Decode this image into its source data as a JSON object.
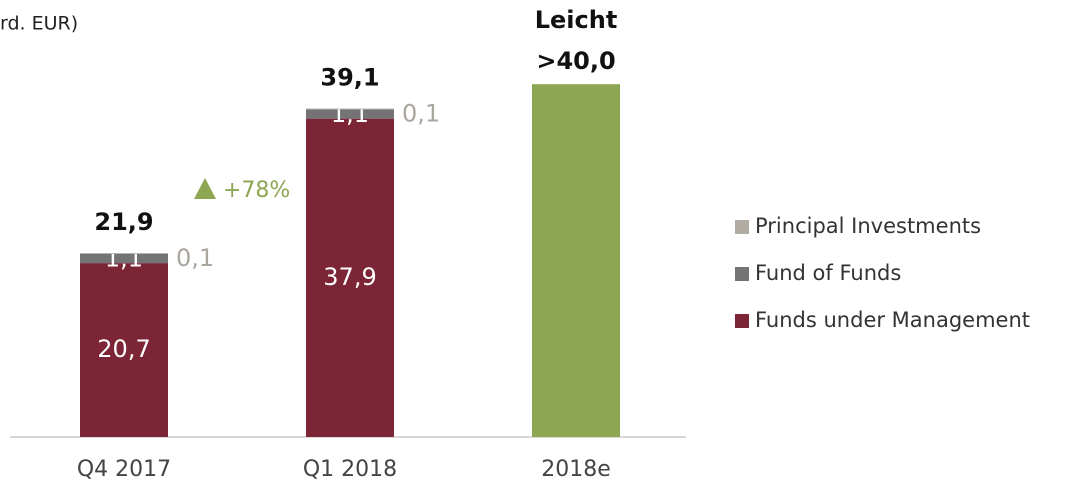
{
  "chart_data": {
    "type": "stacked_bar",
    "title": "rd. EUR)",
    "categories": [
      "Q4 2017",
      "Q1 2018",
      "2018e"
    ],
    "series": [
      {
        "name": "Funds under Management",
        "color": "#7b2537",
        "values": [
          20.7,
          37.9,
          null
        ],
        "value_labels": [
          "20,7",
          "37,9",
          null
        ]
      },
      {
        "name": "Fund of Funds",
        "color": "#747474",
        "values": [
          1.1,
          1.1,
          null
        ],
        "value_labels": [
          "1,1",
          "1,1",
          null
        ]
      },
      {
        "name": "Principal Investments",
        "color": "#b1aca3",
        "values": [
          0.1,
          0.1,
          null
        ],
        "value_labels": [
          "0,1",
          "0,1",
          null
        ]
      }
    ],
    "totals": [
      21.9,
      39.1,
      null
    ],
    "total_labels": [
      "21,9",
      "39,1",
      null
    ],
    "estimate": {
      "category": "2018e",
      "value": 42,
      "color": "#8da651",
      "labels": [
        "Leicht",
        ">40,0"
      ]
    },
    "annotation": {
      "text": "+78%",
      "color": "#8da651"
    },
    "ylim": [
      0,
      45
    ],
    "legend": "right"
  }
}
